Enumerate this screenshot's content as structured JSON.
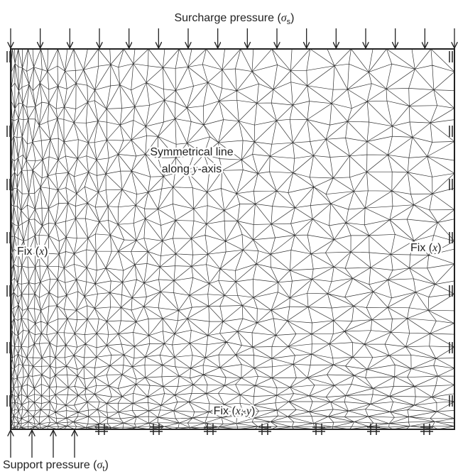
{
  "labels": {
    "surcharge": {
      "text": "Surcharge pressure (",
      "symbol": "σ",
      "subscript": "s",
      "close": ")"
    },
    "symmetry": {
      "line1": "Symmetrical line",
      "line2_start": "along ",
      "line2_italic": "y",
      "line2_end": "-axis"
    },
    "fix_left": {
      "text": "Fix (",
      "italic": "x",
      "close": ")"
    },
    "fix_right": {
      "text": "Fix (",
      "italic": "x",
      "close": ")"
    },
    "fix_bottom": {
      "text": "Fix (",
      "italic": "x, y",
      "close": ")"
    },
    "support": {
      "text": "Support pressure (",
      "symbol": "σ",
      "subscript": "t",
      "close": ")"
    }
  }
}
